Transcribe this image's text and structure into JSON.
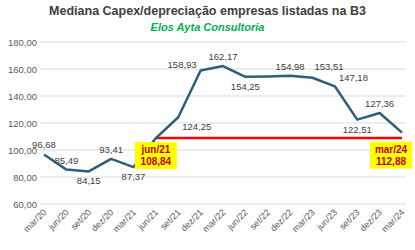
{
  "chart_data": {
    "type": "line",
    "title": "Mediana Capex/depreciação empresas listadas na B3",
    "subtitle": "Elos Ayta Consultoria",
    "categories": [
      "mar/20",
      "jun/20",
      "set/20",
      "dez/20",
      "mar/21",
      "jun/21",
      "set/21",
      "dez/21",
      "mar/22",
      "jun/22",
      "set/22",
      "dez/22",
      "mar/23",
      "jun/23",
      "set/23",
      "dez/23",
      "mar/24"
    ],
    "values": [
      96.68,
      85.49,
      84.15,
      93.41,
      87.37,
      108.84,
      124.25,
      158.93,
      162.17,
      154.25,
      154.5,
      154.98,
      153.51,
      147.18,
      122.51,
      127.36,
      112.88
    ],
    "value_labels": [
      "96,68",
      "85,49",
      "84,15",
      "93,41",
      "87,37",
      null,
      "124,25",
      "158,93",
      "162,17",
      "154,25",
      null,
      "154,98",
      "153,51",
      "147,18",
      "122,51",
      "127,36",
      null
    ],
    "data_labels": true,
    "color": "#2f5d7c",
    "marker": "none",
    "ylim": [
      60,
      180
    ],
    "yticks": [
      {
        "value": 60,
        "label": "60,00"
      },
      {
        "value": 80,
        "label": "80,00"
      },
      {
        "value": 100,
        "label": "100,00"
      },
      {
        "value": 120,
        "label": "120,00"
      },
      {
        "value": 140,
        "label": "140,00"
      },
      {
        "value": 160,
        "label": "160,00"
      },
      {
        "value": 180,
        "label": "180,00"
      }
    ],
    "grid": true,
    "reference_line": {
      "value": 108.84,
      "from": "jun/21",
      "to": "mar/24",
      "color": "#ff0000"
    },
    "annotations": [
      {
        "category": "jun/21",
        "value": 108.84,
        "label": "108,84"
      },
      {
        "category": "mar/24",
        "value": 112.88,
        "label": "112,88"
      }
    ]
  }
}
